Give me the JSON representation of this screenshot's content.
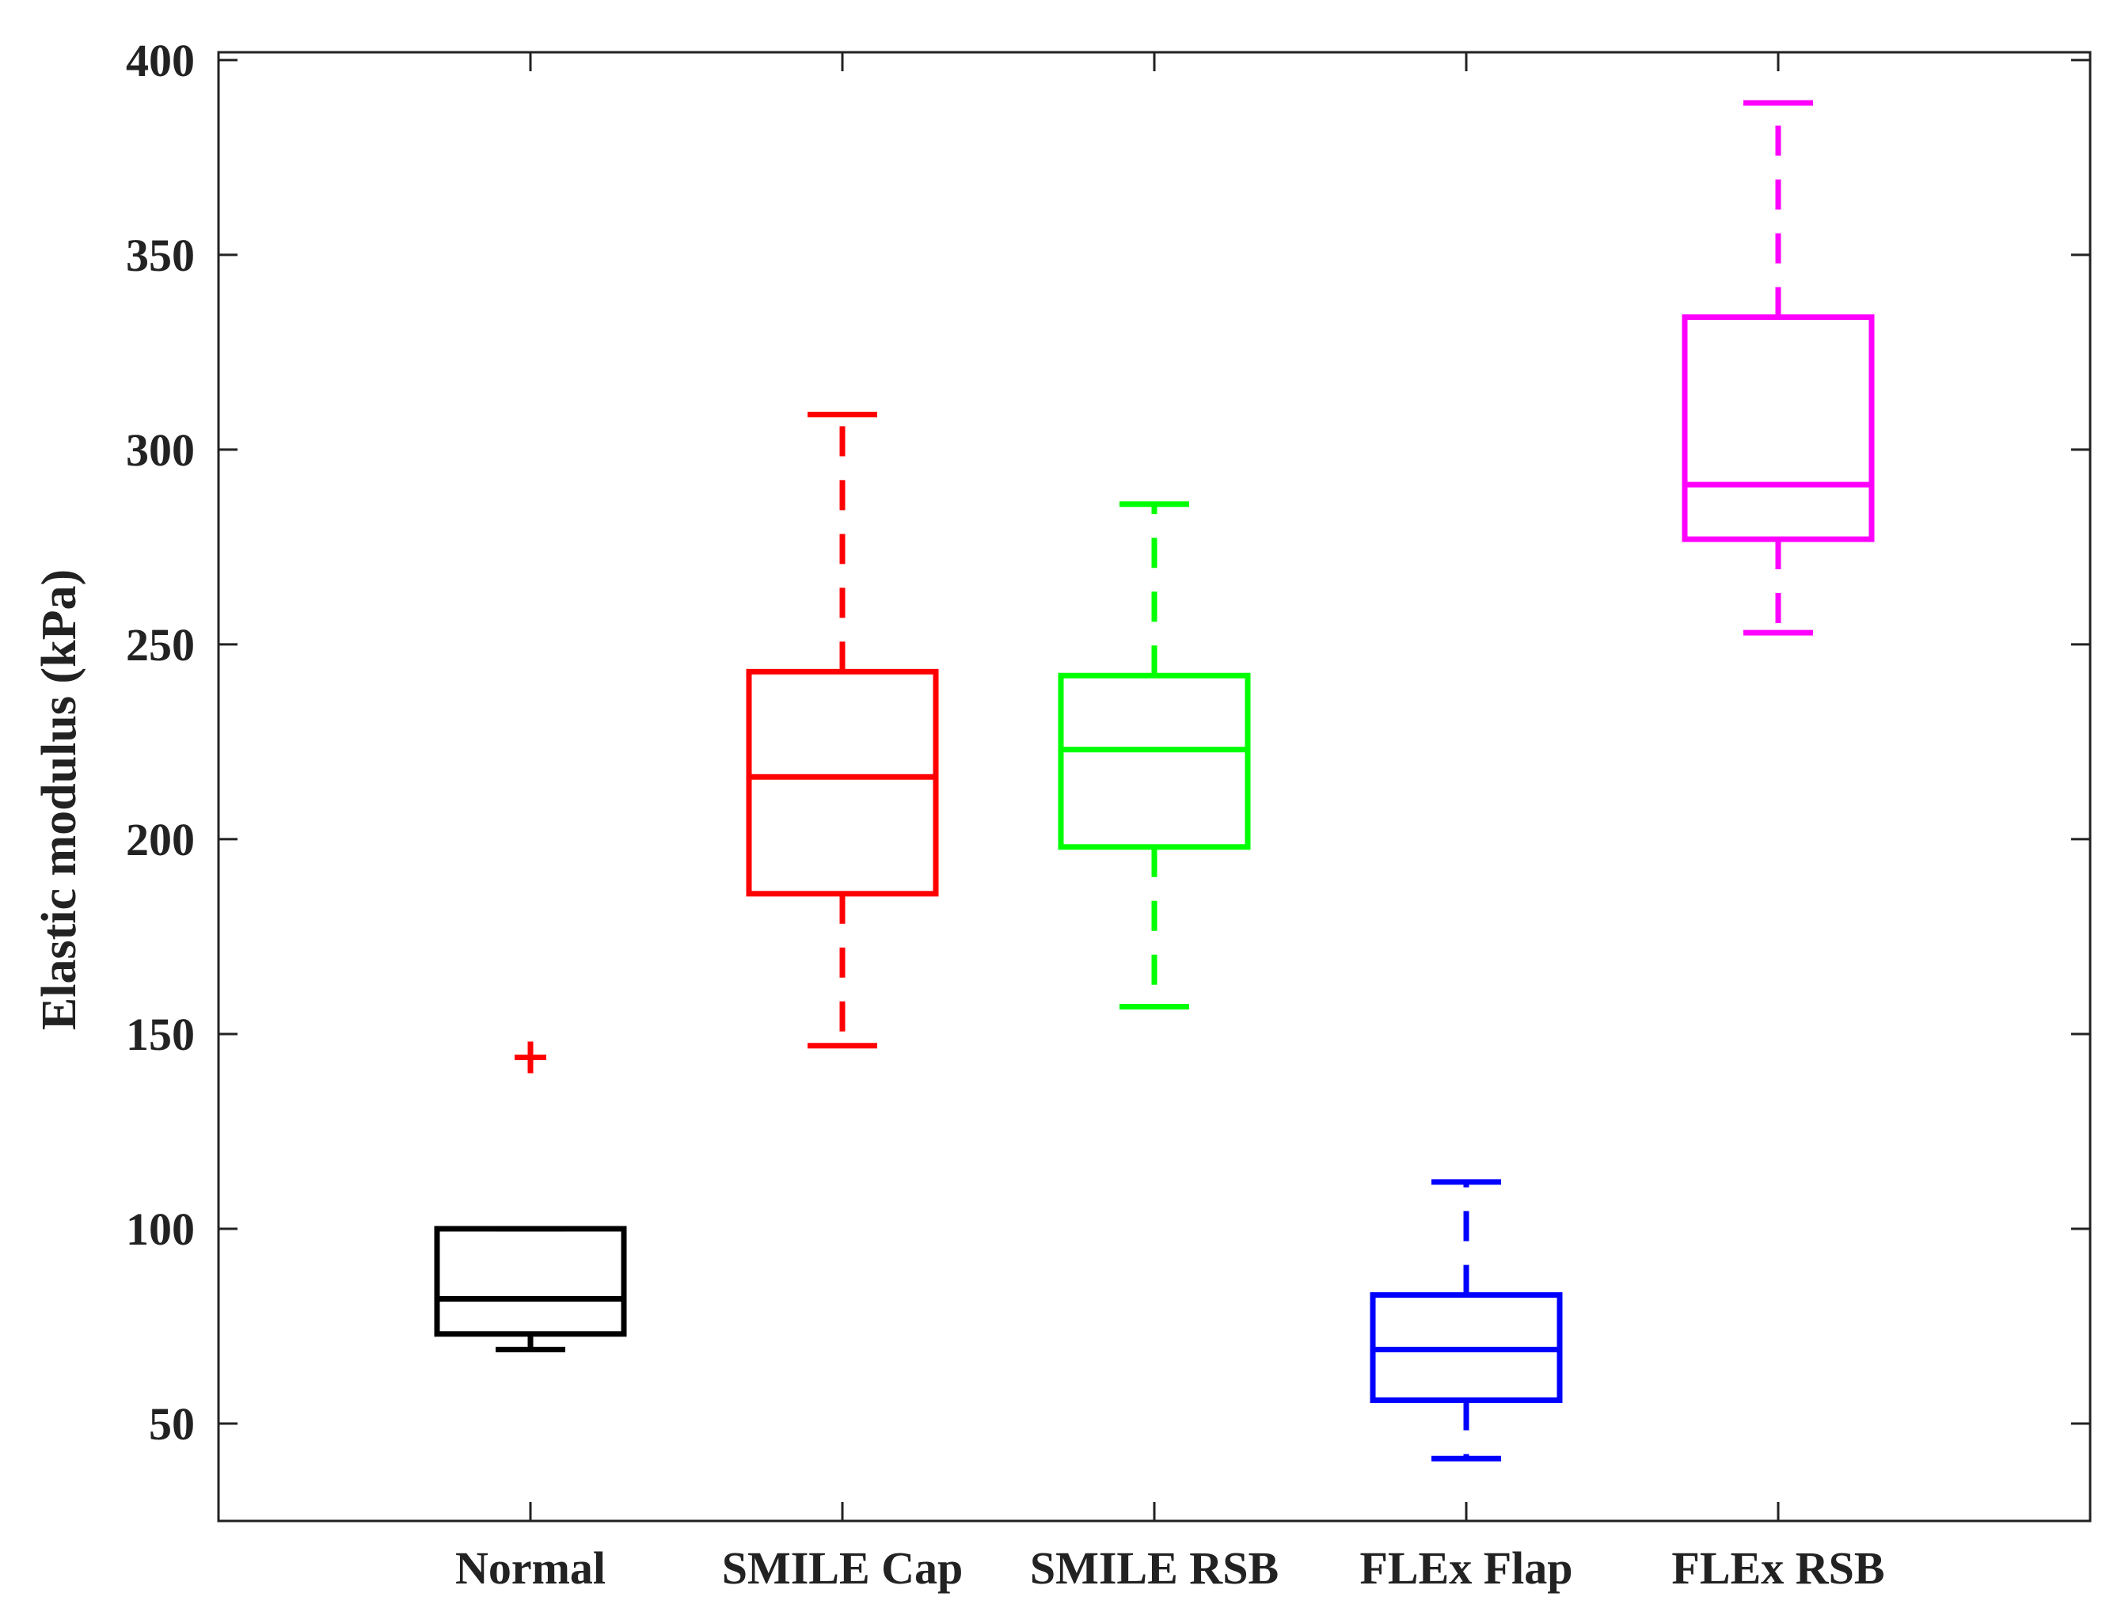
{
  "chart_data": {
    "type": "boxplot",
    "title": "",
    "xlabel": "",
    "ylabel": "Elastic modulus (kPa)",
    "ylim": [
      25,
      402
    ],
    "yticks": [
      50,
      100,
      150,
      200,
      250,
      300,
      350,
      400
    ],
    "grid": false,
    "categories": [
      "Normal",
      "SMILE Cap",
      "SMILE RSB",
      "FLEx Flap",
      "FLEx RSB"
    ],
    "series": [
      {
        "name": "Normal",
        "color": "#000000",
        "whisker_low": 69,
        "q1": 73,
        "median": 82,
        "q3": 100,
        "whisker_high": 100,
        "outliers": [
          144
        ]
      },
      {
        "name": "SMILE Cap",
        "color": "#ff0000",
        "whisker_low": 147,
        "q1": 186,
        "median": 216,
        "q3": 243,
        "whisker_high": 309,
        "outliers": []
      },
      {
        "name": "SMILE RSB",
        "color": "#00ff00",
        "whisker_low": 157,
        "q1": 198,
        "median": 223,
        "q3": 242,
        "whisker_high": 286,
        "outliers": []
      },
      {
        "name": "FLEx Flap",
        "color": "#0000ff",
        "whisker_low": 41,
        "q1": 56,
        "median": 69,
        "q3": 83,
        "whisker_high": 112,
        "outliers": []
      },
      {
        "name": "FLEx RSB",
        "color": "#ff00ff",
        "whisker_low": 253,
        "q1": 277,
        "median": 291,
        "q3": 334,
        "whisker_high": 389,
        "outliers": []
      }
    ],
    "outlier_color": "#ff0000"
  }
}
